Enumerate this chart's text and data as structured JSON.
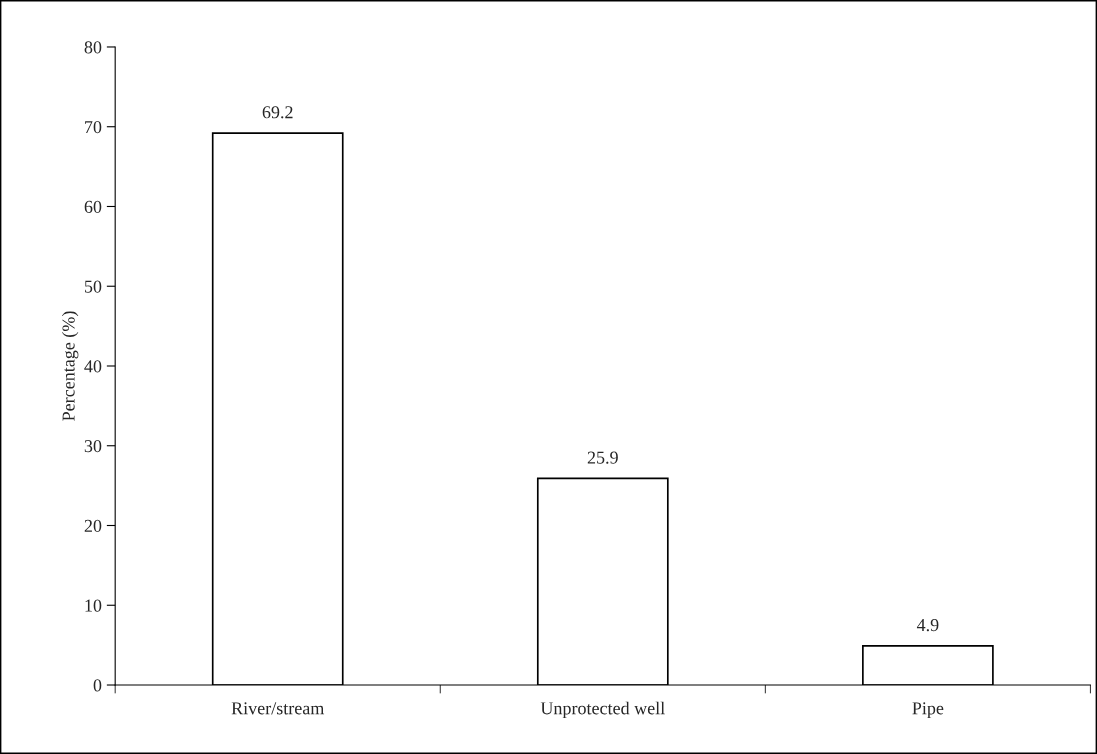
{
  "chart_data": {
    "type": "bar",
    "ylabel": "Percentage (%)",
    "categories": [
      "River/stream",
      "Unprotected well",
      "Pipe"
    ],
    "values": [
      69.2,
      25.9,
      4.9
    ],
    "color": "#ffffff",
    "ylim": [
      0,
      80
    ],
    "yticks": [
      0,
      10,
      20,
      30,
      40,
      50,
      60,
      70,
      80
    ],
    "data_labels": true,
    "grid": false,
    "legend": false
  }
}
